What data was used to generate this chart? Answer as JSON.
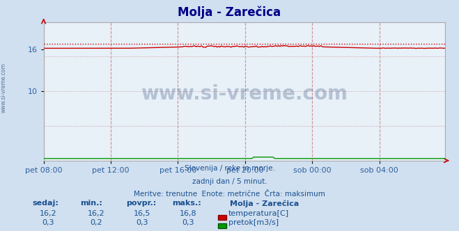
{
  "title": "Molja - Zarečica",
  "bg_color": "#d0e0f0",
  "plot_bg_color": "#e8f0f8",
  "temp_line_color": "#cc0000",
  "flow_line_color": "#009900",
  "ylim": [
    0,
    20
  ],
  "ytick_vals": [
    10,
    16
  ],
  "ytick_labels": [
    "10",
    "16"
  ],
  "n_points": 288,
  "temp_base": 16.5,
  "temp_max_val": 16.8,
  "flow_base": 0.3,
  "xlabel_ticks": [
    "pet 08:00",
    "pet 12:00",
    "pet 16:00",
    "pet 20:00",
    "sob 00:00",
    "sob 04:00"
  ],
  "subtitle1": "Slovenija / reke in morje.",
  "subtitle2": "zadnji dan / 5 minut.",
  "subtitle3": "Meritve: trenutne  Enote: metrične  Črta: maksimum",
  "legend_title": "Molja - Zarečica",
  "label_temp": "temperatura[C]",
  "label_flow": "pretok[m3/s]",
  "watermark": "www.si-vreme.com",
  "watermark_color": "#1a3a6a",
  "text_color": "#1a5090",
  "header_cols": [
    "sedaj:",
    "min.:",
    "povpr.:",
    "maks.:"
  ],
  "row1_vals": [
    "16,2",
    "16,2",
    "16,5",
    "16,8"
  ],
  "row2_vals": [
    "0,3",
    "0,2",
    "0,3",
    "0,3"
  ],
  "title_color": "#000088",
  "axis_label_color": "#3060a0",
  "grid_v_color": "#d09090",
  "grid_h_color": "#d0a0a0",
  "title_fontsize": 12,
  "tick_fontsize": 8,
  "info_fontsize": 8,
  "arrow_color": "#cc0000"
}
